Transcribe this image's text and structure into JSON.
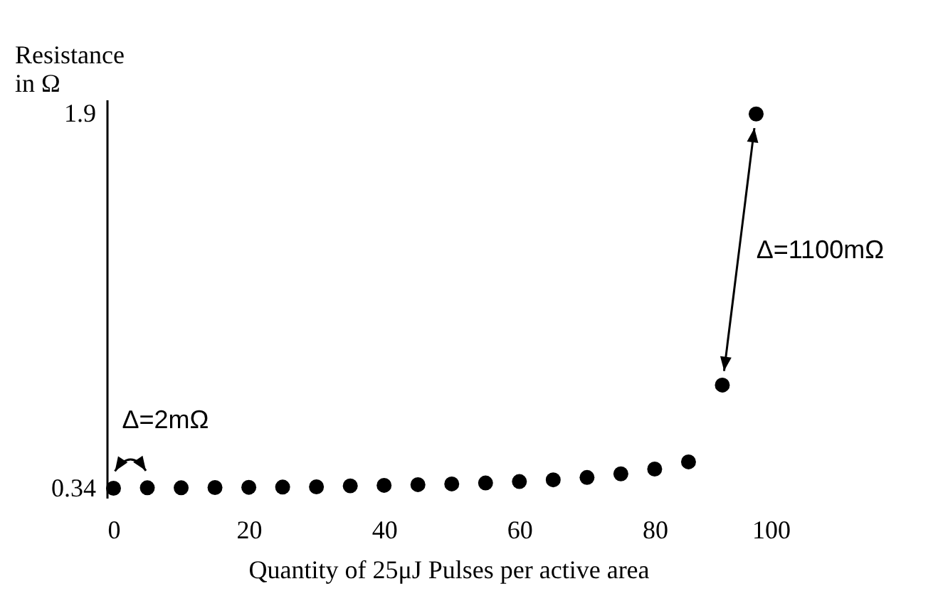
{
  "chart_data": {
    "type": "scatter",
    "xlabel": "Quantity of 25μJ Pulses per active area",
    "ylabel": "Resistance in Ω",
    "x": [
      0,
      5,
      10,
      15,
      20,
      25,
      30,
      35,
      40,
      45,
      50,
      55,
      60,
      65,
      70,
      75,
      80,
      85,
      90,
      95
    ],
    "values": [
      0.34,
      0.342,
      0.342,
      0.343,
      0.344,
      0.345,
      0.346,
      0.35,
      0.352,
      0.355,
      0.358,
      0.362,
      0.368,
      0.375,
      0.385,
      0.4,
      0.42,
      0.45,
      0.77,
      1.9
    ],
    "color": "#000000",
    "marker": "circle",
    "xlim": [
      -1,
      100
    ],
    "xticks": [
      0,
      20,
      40,
      60,
      80,
      100
    ],
    "ylim": [
      0.3,
      1.96
    ],
    "yticks": [
      0.34,
      1.9
    ],
    "annotations": [
      "Δ=2mΩ",
      "Δ=1100mΩ"
    ]
  }
}
